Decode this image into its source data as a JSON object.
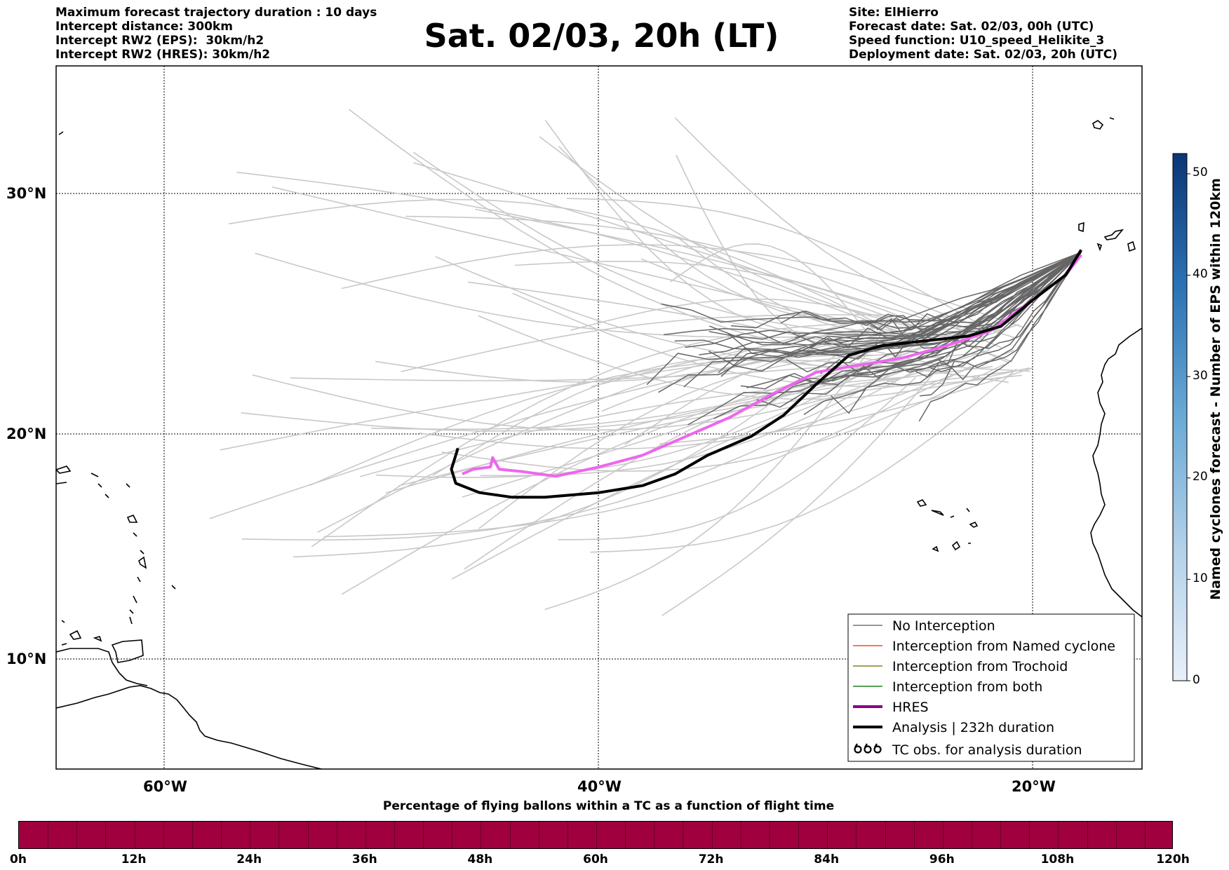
{
  "header_left": [
    "Maximum forecast trajectory duration : 10 days",
    "Intercept distance: 300km",
    "Intercept RW2 (EPS):  30km/h2",
    "Intercept RW2 (HRES): 30km/h2"
  ],
  "title": "Sat. 02/03, 20h (LT)",
  "header_right": [
    "Site: ElHierro",
    "Forecast date: Sat. 02/03, 00h (UTC)",
    "Speed function: U10_speed_Helikite_3",
    "Deployment date: Sat. 02/03, 20h (UTC)"
  ],
  "map": {
    "lat_labels": [
      "30°N",
      "20°N",
      "10°N"
    ],
    "lon_labels": [
      "60°W",
      "40°W",
      "20°W"
    ],
    "lon_range": [
      -65,
      -15
    ],
    "lat_range": [
      5.2,
      34.6
    ],
    "hres_color": "#ee66ee",
    "analysis_color": "#000000",
    "eps_no_interception_color": "#666666",
    "eps_faint_color": "#c8c8c8"
  },
  "legend": {
    "items": [
      {
        "label": "No Interception",
        "color": "#777777"
      },
      {
        "label": "Interception from Named cyclone",
        "color": "#e8541e"
      },
      {
        "label": "Interception from Trochoid",
        "color": "#808020"
      },
      {
        "label": "Interception from both",
        "color": "#208020"
      },
      {
        "label": "HRES",
        "color": "#8b008b"
      },
      {
        "label": "Analysis | 232h duration",
        "color": "#000000"
      },
      {
        "label": "TC obs. for analysis duration",
        "color": "#000000"
      }
    ]
  },
  "colorbar": {
    "label": "Named cyclones forecast - Number of EPS within 120km",
    "ticks": [
      "0",
      "10",
      "20",
      "30",
      "40",
      "50"
    ],
    "max": 52
  },
  "bottom_bar": {
    "title": "Percentage of flying ballons within a TC as a function of flight time",
    "ticks": [
      "0h",
      "12h",
      "24h",
      "36h",
      "48h",
      "60h",
      "72h",
      "84h",
      "96h",
      "108h",
      "120h"
    ],
    "color": "#a0003e"
  },
  "chart_data": {
    "type": "line",
    "title": "Sat. 02/03, 20h (LT)",
    "xlabel": "",
    "ylabel": "",
    "xlim": [
      -65,
      -15
    ],
    "ylim": [
      5.2,
      34.6
    ],
    "series": [
      {
        "name": "HRES",
        "points": [
          [
            -46.3,
            18.2
          ],
          [
            -45.8,
            18.4
          ],
          [
            -45.0,
            18.5
          ],
          [
            -44.9,
            18.9
          ],
          [
            -44.6,
            18.4
          ],
          [
            -43.5,
            18.3
          ],
          [
            -42.0,
            18.1
          ],
          [
            -40.0,
            18.5
          ],
          [
            -38.0,
            19.0
          ],
          [
            -36.0,
            19.8
          ],
          [
            -34.0,
            20.6
          ],
          [
            -32.0,
            21.6
          ],
          [
            -30.0,
            22.5
          ],
          [
            -28.0,
            22.8
          ],
          [
            -26.0,
            23.1
          ],
          [
            -24.0,
            23.6
          ],
          [
            -22.0,
            24.2
          ],
          [
            -20.0,
            25.5
          ],
          [
            -18.5,
            26.5
          ],
          [
            -17.8,
            27.3
          ]
        ]
      },
      {
        "name": "Analysis | 232h duration",
        "points": [
          [
            -46.5,
            19.3
          ],
          [
            -46.8,
            18.4
          ],
          [
            -46.6,
            17.8
          ],
          [
            -45.5,
            17.4
          ],
          [
            -44.0,
            17.2
          ],
          [
            -42.5,
            17.2
          ],
          [
            -40.0,
            17.4
          ],
          [
            -38.0,
            17.7
          ],
          [
            -36.5,
            18.2
          ],
          [
            -35.0,
            19.0
          ],
          [
            -33.0,
            19.8
          ],
          [
            -31.5,
            20.7
          ],
          [
            -30.0,
            22.0
          ],
          [
            -28.5,
            23.2
          ],
          [
            -27.0,
            23.6
          ],
          [
            -25.0,
            23.8
          ],
          [
            -23.0,
            24.0
          ],
          [
            -21.5,
            24.4
          ],
          [
            -20.0,
            25.5
          ],
          [
            -18.5,
            26.5
          ],
          [
            -17.8,
            27.5
          ]
        ]
      }
    ]
  }
}
